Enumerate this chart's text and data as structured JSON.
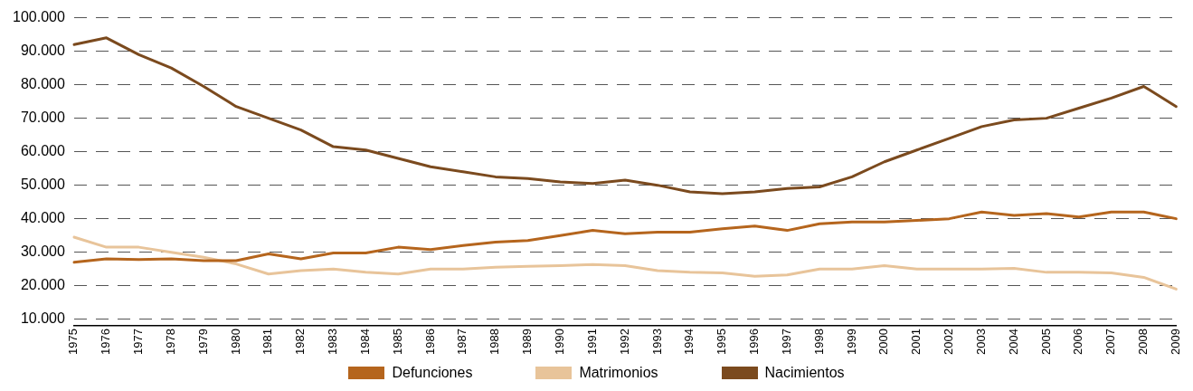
{
  "chart_data": {
    "type": "line",
    "categories": [
      "1975",
      "1976",
      "1977",
      "1978",
      "1979",
      "1980",
      "1981",
      "1982",
      "1983",
      "1984",
      "1985",
      "1986",
      "1987",
      "1988",
      "1989",
      "1990",
      "1991",
      "1992",
      "1993",
      "1994",
      "1995",
      "1996",
      "1997",
      "1998",
      "1999",
      "2000",
      "2001",
      "2002",
      "2003",
      "2004",
      "2005",
      "2006",
      "2007",
      "2008",
      "2009"
    ],
    "series": [
      {
        "name": "Defunciones",
        "color": "#b5651d",
        "values": [
          27000,
          28000,
          27800,
          28000,
          27500,
          27500,
          29500,
          28000,
          29800,
          29800,
          31500,
          30800,
          32000,
          33000,
          33500,
          35000,
          36500,
          35500,
          36000,
          36000,
          37000,
          37800,
          36500,
          38500,
          39000,
          39000,
          39500,
          40000,
          42000,
          41000,
          41500,
          40500,
          42000,
          42000,
          40000
        ]
      },
      {
        "name": "Matrimonios",
        "color": "#e8c49a",
        "values": [
          34500,
          31500,
          31500,
          30000,
          28500,
          26500,
          23500,
          24500,
          25000,
          24000,
          23500,
          25000,
          25000,
          25500,
          25800,
          26000,
          26300,
          26000,
          24500,
          24000,
          23800,
          22800,
          23200,
          25000,
          25000,
          26000,
          25000,
          25000,
          25000,
          25200,
          24000,
          24000,
          23800,
          22500,
          19000
        ]
      },
      {
        "name": "Nacimientos",
        "color": "#7b4a1e",
        "values": [
          92000,
          94000,
          89000,
          85000,
          79500,
          73500,
          70000,
          66500,
          61500,
          60500,
          58000,
          55500,
          54000,
          52500,
          52000,
          51000,
          50500,
          51500,
          50000,
          48000,
          47500,
          48000,
          49000,
          49500,
          52500,
          57000,
          60500,
          64000,
          67500,
          69500,
          70000,
          73000,
          76000,
          79500,
          73500
        ]
      }
    ],
    "ylim": [
      8000,
      100000
    ],
    "yticks": [
      {
        "value": 10000,
        "label": "10.000"
      },
      {
        "value": 20000,
        "label": "20.000"
      },
      {
        "value": 30000,
        "label": "30.000"
      },
      {
        "value": 40000,
        "label": "40.000"
      },
      {
        "value": 50000,
        "label": "50.000"
      },
      {
        "value": 60000,
        "label": "60.000"
      },
      {
        "value": 70000,
        "label": "70.000"
      },
      {
        "value": 80000,
        "label": "80.000"
      },
      {
        "value": 90000,
        "label": "90.000"
      },
      {
        "value": 100000,
        "label": "100.000"
      }
    ],
    "grid": "y",
    "legend": "bottom",
    "marker": "none",
    "line_style": "solid"
  }
}
